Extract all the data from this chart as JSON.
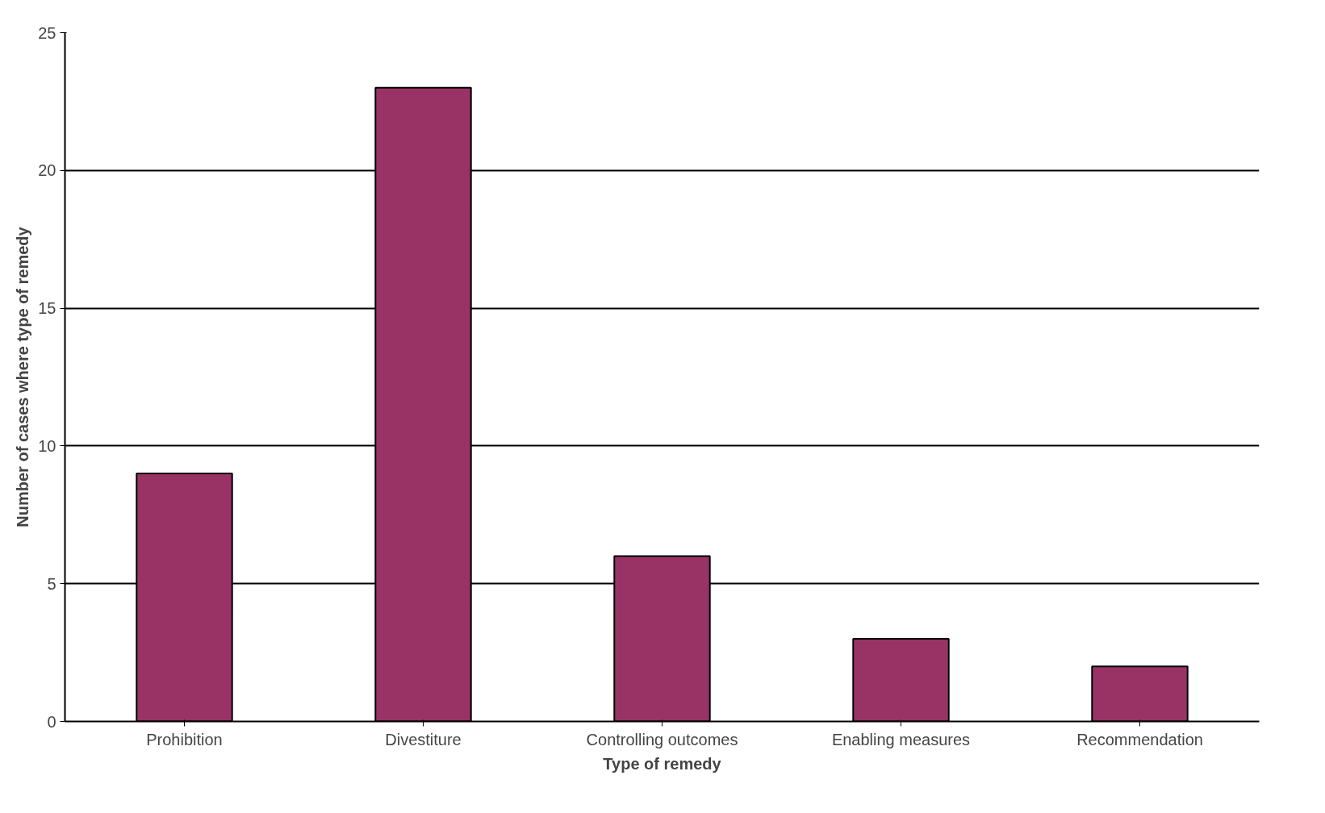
{
  "chart_data": {
    "type": "bar",
    "xlabel": "Type of remedy",
    "ylabel": "Number of cases where type of remedy",
    "categories": [
      "Prohibition",
      "Divestiture",
      "Controlling outcomes",
      "Enabling measures",
      "Recommendation"
    ],
    "values": [
      9,
      23,
      6,
      3,
      2
    ],
    "color": "#993366",
    "ylim": [
      0,
      25
    ],
    "yticks": [
      0,
      5,
      10,
      15,
      20,
      25
    ],
    "grid": "y"
  }
}
